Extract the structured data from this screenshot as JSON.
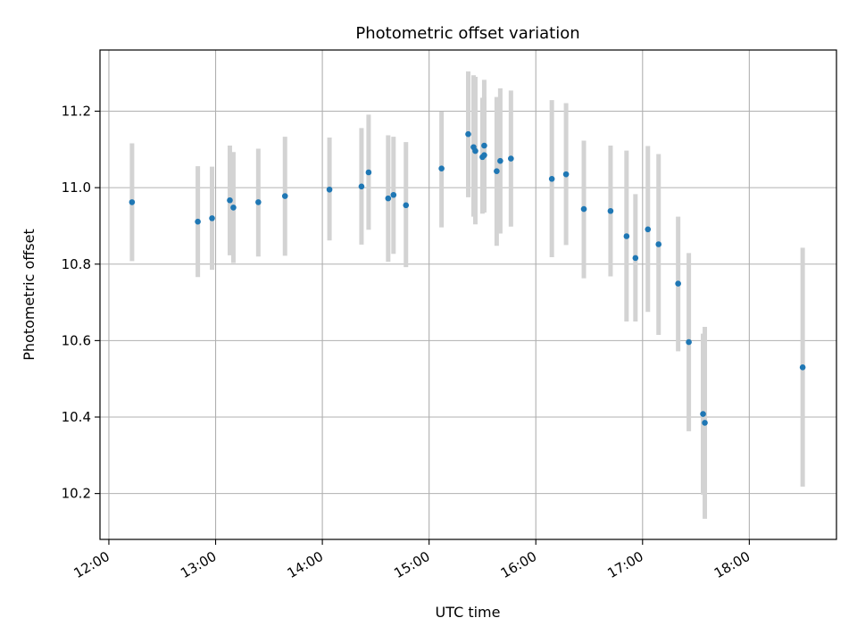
{
  "chart_data": {
    "type": "scatter",
    "title": "Photometric offset variation",
    "xlabel": "UTC time",
    "ylabel": "Photometric offset",
    "x_unit": "UTC time",
    "xlim": [
      "11:55",
      "18:49"
    ],
    "ylim": [
      10.08,
      11.36
    ],
    "grid": true,
    "x_ticks": [
      "12:00",
      "13:00",
      "14:00",
      "15:00",
      "16:00",
      "17:00",
      "18:00"
    ],
    "y_ticks": [
      10.2,
      10.4,
      10.6,
      10.8,
      11.0,
      11.2
    ],
    "y_tick_labels": [
      "10.2",
      "10.4",
      "10.6",
      "10.8",
      "11.0",
      "11.2"
    ],
    "x_tick_labels_rotated": true,
    "colors": {
      "point": "#1f77b4",
      "errorbar": "#d3d3d3",
      "grid": "#b0b0b0"
    },
    "points": [
      {
        "x": "12:13",
        "y": 10.962,
        "lo": 10.808,
        "hi": 11.116
      },
      {
        "x": "12:50",
        "y": 10.911,
        "lo": 10.766,
        "hi": 11.056
      },
      {
        "x": "12:58",
        "y": 10.92,
        "lo": 10.785,
        "hi": 11.055
      },
      {
        "x": "13:08",
        "y": 10.967,
        "lo": 10.823,
        "hi": 11.11
      },
      {
        "x": "13:10",
        "y": 10.948,
        "lo": 10.803,
        "hi": 11.093
      },
      {
        "x": "13:24",
        "y": 10.962,
        "lo": 10.82,
        "hi": 11.102
      },
      {
        "x": "13:39",
        "y": 10.978,
        "lo": 10.822,
        "hi": 11.133
      },
      {
        "x": "14:04",
        "y": 10.995,
        "lo": 10.862,
        "hi": 11.131
      },
      {
        "x": "14:22",
        "y": 11.003,
        "lo": 10.851,
        "hi": 11.156
      },
      {
        "x": "14:26",
        "y": 11.04,
        "lo": 10.89,
        "hi": 11.191
      },
      {
        "x": "14:37",
        "y": 10.972,
        "lo": 10.806,
        "hi": 11.137
      },
      {
        "x": "14:40",
        "y": 10.981,
        "lo": 10.827,
        "hi": 11.133
      },
      {
        "x": "14:47",
        "y": 10.954,
        "lo": 10.792,
        "hi": 11.119
      },
      {
        "x": "15:07",
        "y": 11.05,
        "lo": 10.896,
        "hi": 11.199
      },
      {
        "x": "15:22",
        "y": 11.14,
        "lo": 10.975,
        "hi": 11.304
      },
      {
        "x": "15:25",
        "y": 11.106,
        "lo": 10.924,
        "hi": 11.294
      },
      {
        "x": "15:26",
        "y": 11.096,
        "lo": 10.904,
        "hi": 11.29
      },
      {
        "x": "15:30",
        "y": 11.08,
        "lo": 10.932,
        "hi": 11.235
      },
      {
        "x": "15:31",
        "y": 11.085,
        "lo": 10.935,
        "hi": 11.282
      },
      {
        "x": "15:31",
        "y": 11.11,
        "lo": 10.942,
        "hi": 11.238
      },
      {
        "x": "15:38",
        "y": 11.043,
        "lo": 10.848,
        "hi": 11.237
      },
      {
        "x": "15:40",
        "y": 11.07,
        "lo": 10.88,
        "hi": 11.26
      },
      {
        "x": "15:46",
        "y": 11.076,
        "lo": 10.898,
        "hi": 11.254
      },
      {
        "x": "16:09",
        "y": 11.023,
        "lo": 10.818,
        "hi": 11.229
      },
      {
        "x": "16:17",
        "y": 11.035,
        "lo": 10.85,
        "hi": 11.221
      },
      {
        "x": "16:27",
        "y": 10.944,
        "lo": 10.763,
        "hi": 11.123
      },
      {
        "x": "16:42",
        "y": 10.939,
        "lo": 10.768,
        "hi": 11.11
      },
      {
        "x": "16:51",
        "y": 10.873,
        "lo": 10.65,
        "hi": 11.097
      },
      {
        "x": "16:56",
        "y": 10.816,
        "lo": 10.65,
        "hi": 10.983
      },
      {
        "x": "17:03",
        "y": 10.891,
        "lo": 10.675,
        "hi": 11.109
      },
      {
        "x": "17:09",
        "y": 10.852,
        "lo": 10.615,
        "hi": 11.088
      },
      {
        "x": "17:20",
        "y": 10.749,
        "lo": 10.572,
        "hi": 10.924
      },
      {
        "x": "17:26",
        "y": 10.596,
        "lo": 10.363,
        "hi": 10.829
      },
      {
        "x": "17:34",
        "y": 10.408,
        "lo": 10.197,
        "hi": 10.618
      },
      {
        "x": "17:35",
        "y": 10.385,
        "lo": 10.134,
        "hi": 10.636
      },
      {
        "x": "18:30",
        "y": 10.53,
        "lo": 10.218,
        "hi": 10.843
      }
    ]
  }
}
